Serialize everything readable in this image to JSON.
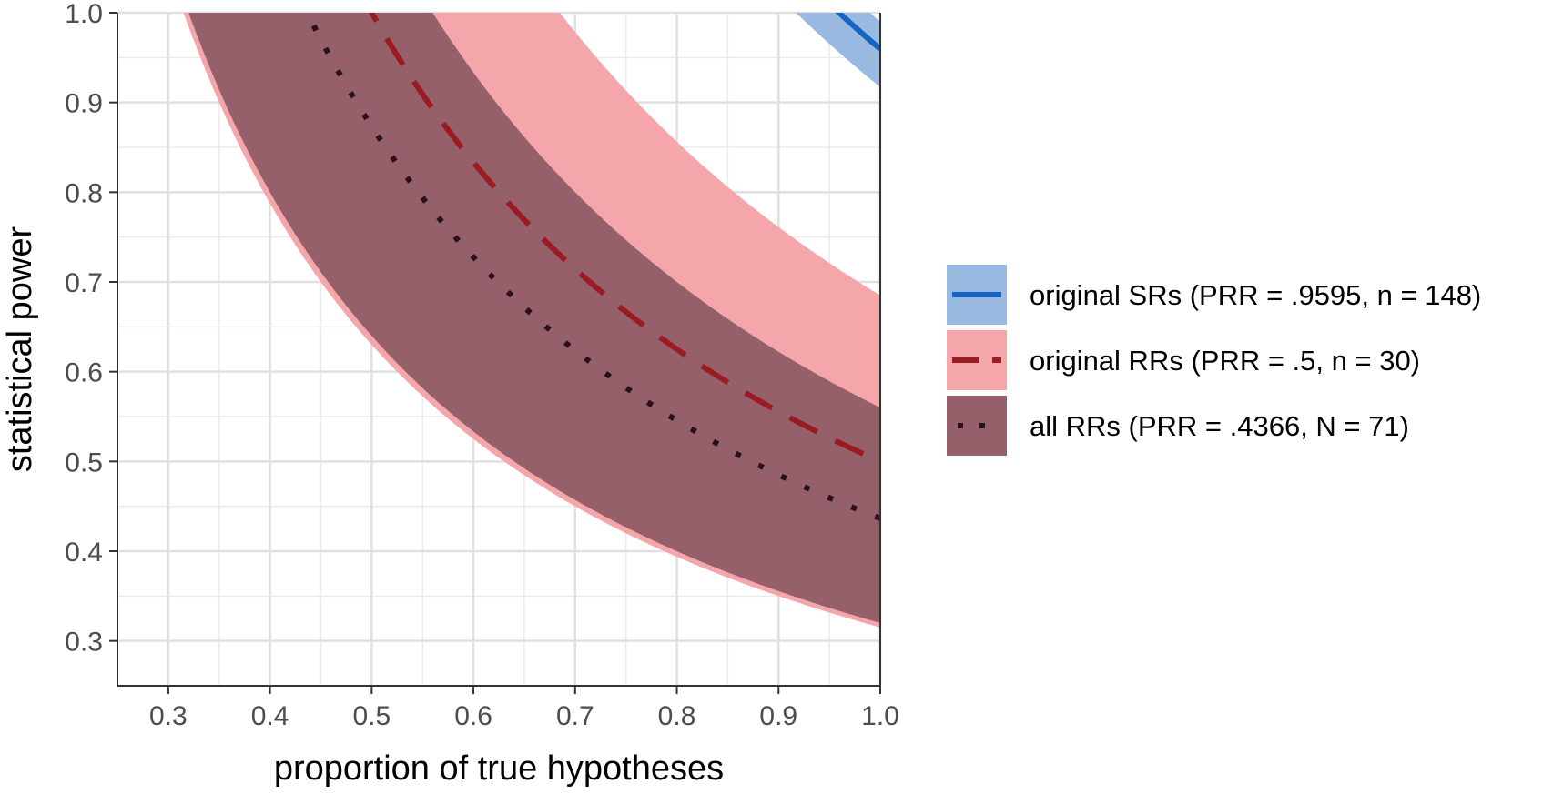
{
  "chart_data": {
    "type": "area",
    "title": "",
    "xlabel": "proportion of true hypotheses",
    "ylabel": "statistical power",
    "xlim": [
      0.25,
      1.0
    ],
    "ylim": [
      0.25,
      1.0
    ],
    "xticks": [
      "0.3",
      "0.4",
      "0.5",
      "0.6",
      "0.7",
      "0.8",
      "0.9",
      "1.0"
    ],
    "yticks": [
      "0.3",
      "0.4",
      "0.5",
      "0.6",
      "0.7",
      "0.8",
      "0.9",
      "1.0"
    ],
    "grid": true,
    "legend_position": "right",
    "series": [
      {
        "name": "original SRs (PRR = .9595, n = 148)",
        "prr": 0.9595,
        "ribbon_low_prr": 0.917,
        "ribbon_high_prr": 0.99,
        "line_style": "solid",
        "line_color": "#1565c0",
        "fill_color": "#9ab9e0"
      },
      {
        "name": "original RRs (PRR = .5, n = 30)",
        "prr": 0.5,
        "ribbon_low_prr": 0.315,
        "ribbon_high_prr": 0.685,
        "line_style": "dashed",
        "line_color": "#9b1b23",
        "fill_color": "#f4a6aa"
      },
      {
        "name": "all RRs (PRR = .4366, N = 71)",
        "prr": 0.4366,
        "ribbon_low_prr": 0.32,
        "ribbon_high_prr": 0.56,
        "line_style": "dotted",
        "line_color": "#2a0f1e",
        "fill_color": "#956069"
      }
    ]
  }
}
